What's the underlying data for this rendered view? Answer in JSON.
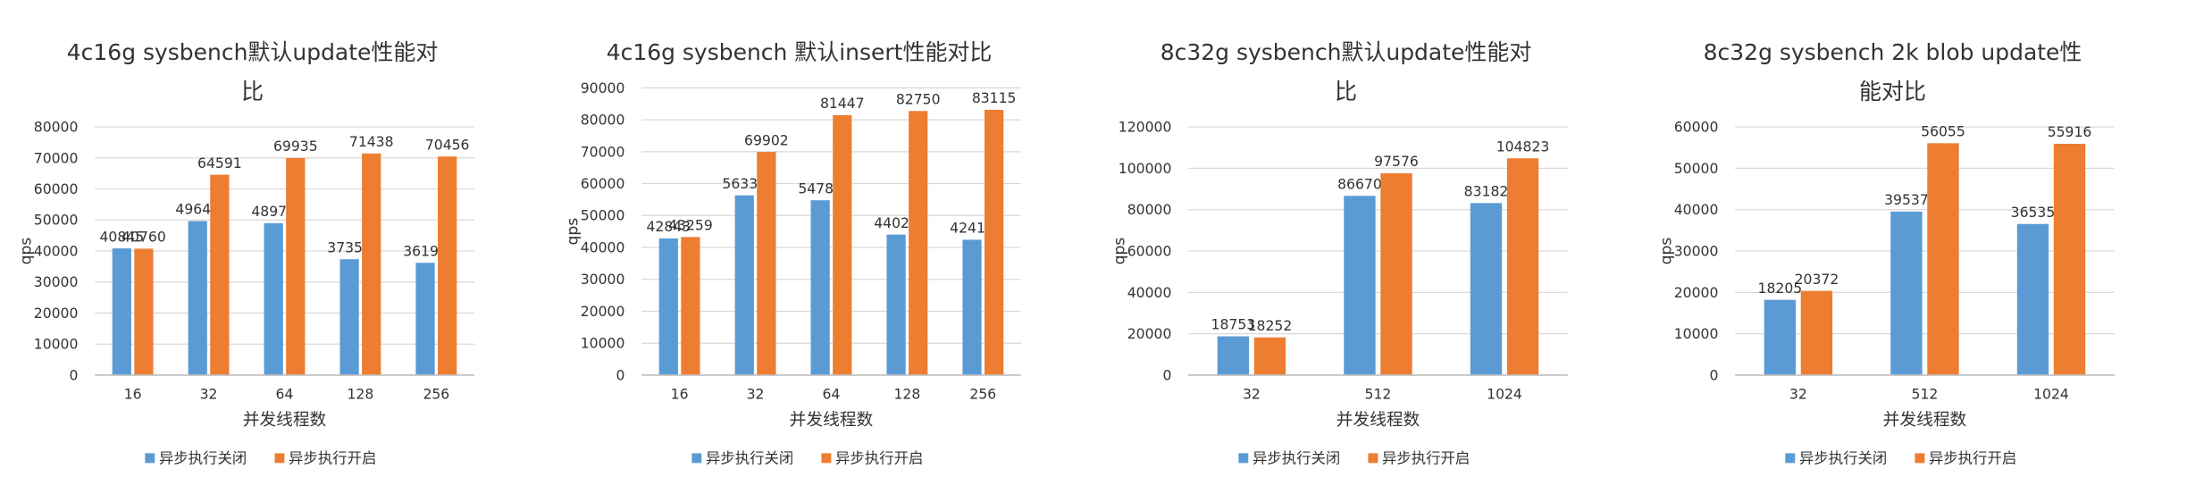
{
  "chart_data": [
    {
      "type": "bar",
      "title": "4c16g sysbench默认update性能对比",
      "y_label": "qps",
      "x_label": "并发线程数",
      "categories": [
        "16",
        "32",
        "64",
        "128",
        "256"
      ],
      "series": [
        {
          "name": "异步执行关闭",
          "color": "#5b9bd5",
          "values": [
            40845,
            49649,
            48975,
            37358,
            36195
          ]
        },
        {
          "name": "异步执行开启",
          "color": "#ed7d31",
          "values": [
            40760,
            64591,
            69935,
            71438,
            70456
          ]
        }
      ],
      "ylim": [
        0,
        80000
      ],
      "yticks": [
        0,
        10000,
        20000,
        30000,
        40000,
        50000,
        60000,
        70000,
        80000
      ],
      "grid": true
    },
    {
      "type": "bar",
      "title": "4c16g sysbench 默认insert性能对比",
      "y_label": "qps",
      "x_label": "并发线程数",
      "categories": [
        "16",
        "32",
        "64",
        "128",
        "256"
      ],
      "series": [
        {
          "name": "异步执行关闭",
          "color": "#5b9bd5",
          "values": [
            42843,
            56333,
            54788,
            44029,
            42416
          ]
        },
        {
          "name": "异步执行开启",
          "color": "#ed7d31",
          "values": [
            43259,
            69902,
            81447,
            82750,
            83115
          ]
        }
      ],
      "ylim": [
        0,
        90000
      ],
      "yticks": [
        0,
        10000,
        20000,
        30000,
        40000,
        50000,
        60000,
        70000,
        80000,
        90000
      ],
      "grid": true
    },
    {
      "type": "bar",
      "title": "8c32g sysbench默认update性能对比",
      "y_label": "qps",
      "x_label": "并发线程数",
      "categories": [
        "32",
        "512",
        "1024"
      ],
      "series": [
        {
          "name": "异步执行关闭",
          "color": "#5b9bd5",
          "values": [
            18753,
            86670,
            83182
          ]
        },
        {
          "name": "异步执行开启",
          "color": "#ed7d31",
          "values": [
            18252,
            97576,
            104823
          ]
        }
      ],
      "ylim": [
        0,
        120000
      ],
      "yticks": [
        0,
        20000,
        40000,
        60000,
        80000,
        100000,
        120000
      ],
      "grid": true
    },
    {
      "type": "bar",
      "title": "8c32g sysbench 2k blob update性能对比",
      "y_label": "qps",
      "x_label": "并发线程数",
      "categories": [
        "32",
        "512",
        "1024"
      ],
      "series": [
        {
          "name": "异步执行关闭",
          "color": "#5b9bd5",
          "values": [
            18205,
            39537,
            36535
          ]
        },
        {
          "name": "异步执行开启",
          "color": "#ed7d31",
          "values": [
            20372,
            56055,
            55916
          ]
        }
      ],
      "ylim": [
        0,
        60000
      ],
      "yticks": [
        0,
        10000,
        20000,
        30000,
        40000,
        50000,
        60000
      ],
      "grid": true
    }
  ]
}
